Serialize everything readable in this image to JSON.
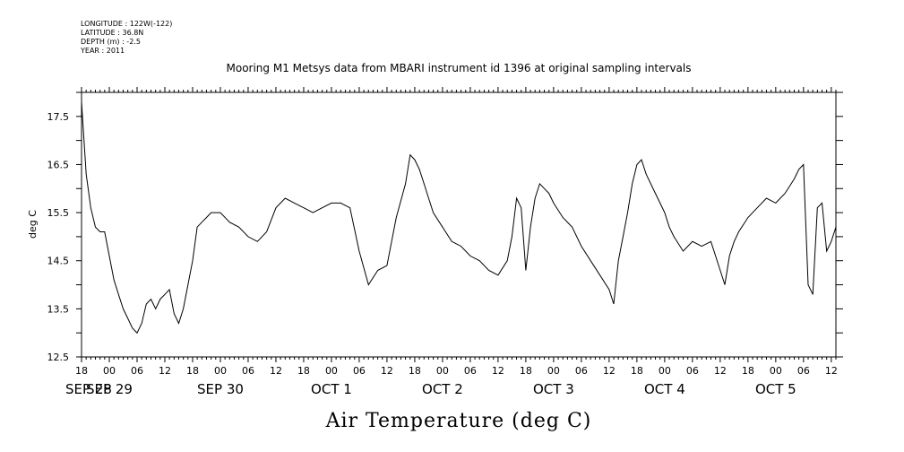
{
  "header": {
    "lines": [
      "LONGITUDE : 122W(-122)",
      "LATITUDE : 36.8N",
      "DEPTH (m) : -2.5",
      "YEAR : 2011"
    ]
  },
  "chart_data": {
    "type": "line",
    "title": "Mooring M1 Metsys data from MBARI instrument id 1396 at original sampling intervals",
    "xlabel": "Air Temperature (deg C)",
    "ylabel": "deg C",
    "ylim": [
      12.5,
      18.0
    ],
    "yticks": [
      12.5,
      13.5,
      14.5,
      15.5,
      16.5,
      17.5
    ],
    "ytick_labels": [
      "12.5",
      "13.5",
      "14.5",
      "15.5",
      "16.5",
      "17.5"
    ],
    "xlim": [
      "2011-09-28 18:00",
      "2011-10-05 13:00"
    ],
    "x_hour_labels": [
      "18",
      "00",
      "06",
      "12",
      "18",
      "00",
      "06",
      "12",
      "18",
      "00",
      "06",
      "12",
      "18",
      "00",
      "06",
      "12",
      "18",
      "00",
      "06",
      "12",
      "18",
      "00",
      "06",
      "12",
      "18",
      "00",
      "06",
      "12"
    ],
    "x_date_labels": [
      "SEP 28",
      "SEP 29",
      "SEP 30",
      "OCT 1",
      "OCT 2",
      "OCT 3",
      "OCT 4",
      "OCT 5"
    ],
    "grid": false,
    "series": [
      {
        "color": "#000000",
        "x": [
          "2011-09-28 18:00",
          "2011-09-28 19:00",
          "2011-09-28 20:00",
          "2011-09-28 21:00",
          "2011-09-28 22:00",
          "2011-09-28 23:00",
          "2011-09-29 00:00",
          "2011-09-29 01:00",
          "2011-09-29 02:00",
          "2011-09-29 03:00",
          "2011-09-29 04:00",
          "2011-09-29 05:00",
          "2011-09-29 06:00",
          "2011-09-29 07:00",
          "2011-09-29 08:00",
          "2011-09-29 09:00",
          "2011-09-29 10:00",
          "2011-09-29 11:00",
          "2011-09-29 12:00",
          "2011-09-29 13:00",
          "2011-09-29 14:00",
          "2011-09-29 15:00",
          "2011-09-29 16:00",
          "2011-09-29 17:00",
          "2011-09-29 18:00",
          "2011-09-29 19:00",
          "2011-09-29 20:00",
          "2011-09-29 21:00",
          "2011-09-29 22:00",
          "2011-09-29 23:00",
          "2011-09-30 00:00",
          "2011-09-30 02:00",
          "2011-09-30 04:00",
          "2011-09-30 06:00",
          "2011-09-30 08:00",
          "2011-09-30 10:00",
          "2011-09-30 12:00",
          "2011-09-30 14:00",
          "2011-09-30 16:00",
          "2011-09-30 18:00",
          "2011-09-30 20:00",
          "2011-09-30 22:00",
          "2011-10-01 00:00",
          "2011-10-01 02:00",
          "2011-10-01 04:00",
          "2011-10-01 06:00",
          "2011-10-01 08:00",
          "2011-10-01 10:00",
          "2011-10-01 12:00",
          "2011-10-01 13:00",
          "2011-10-01 14:00",
          "2011-10-01 16:00",
          "2011-10-01 17:00",
          "2011-10-01 18:00",
          "2011-10-01 19:00",
          "2011-10-01 20:00",
          "2011-10-01 21:00",
          "2011-10-01 22:00",
          "2011-10-02 00:00",
          "2011-10-02 02:00",
          "2011-10-02 04:00",
          "2011-10-02 06:00",
          "2011-10-02 08:00",
          "2011-10-02 10:00",
          "2011-10-02 12:00",
          "2011-10-02 14:00",
          "2011-10-02 15:00",
          "2011-10-02 16:00",
          "2011-10-02 17:00",
          "2011-10-02 18:00",
          "2011-10-02 19:00",
          "2011-10-02 20:00",
          "2011-10-02 21:00",
          "2011-10-02 22:00",
          "2011-10-02 23:00",
          "2011-10-03 00:00",
          "2011-10-03 02:00",
          "2011-10-03 04:00",
          "2011-10-03 06:00",
          "2011-10-03 08:00",
          "2011-10-03 10:00",
          "2011-10-03 12:00",
          "2011-10-03 13:00",
          "2011-10-03 14:00",
          "2011-10-03 15:00",
          "2011-10-03 16:00",
          "2011-10-03 17:00",
          "2011-10-03 18:00",
          "2011-10-03 19:00",
          "2011-10-03 20:00",
          "2011-10-03 22:00",
          "2011-10-04 00:00",
          "2011-10-04 01:00",
          "2011-10-04 02:00",
          "2011-10-04 04:00",
          "2011-10-04 06:00",
          "2011-10-04 08:00",
          "2011-10-04 10:00",
          "2011-10-04 12:00",
          "2011-10-04 13:00",
          "2011-10-04 14:00",
          "2011-10-04 15:00",
          "2011-10-04 16:00",
          "2011-10-04 18:00",
          "2011-10-04 20:00",
          "2011-10-04 22:00",
          "2011-10-05 00:00",
          "2011-10-05 02:00",
          "2011-10-05 04:00",
          "2011-10-05 05:00",
          "2011-10-05 06:00",
          "2011-10-05 07:00",
          "2011-10-05 08:00",
          "2011-10-05 09:00",
          "2011-10-05 10:00",
          "2011-10-05 11:00",
          "2011-10-05 12:00",
          "2011-10-05 13:00"
        ],
        "y": [
          17.8,
          16.3,
          15.6,
          15.2,
          15.1,
          15.1,
          14.6,
          14.1,
          13.8,
          13.5,
          13.3,
          13.1,
          13.0,
          13.2,
          13.6,
          13.7,
          13.5,
          13.7,
          13.8,
          13.9,
          13.4,
          13.2,
          13.5,
          14.0,
          14.5,
          15.2,
          15.3,
          15.4,
          15.5,
          15.5,
          15.5,
          15.3,
          15.2,
          15.0,
          14.9,
          15.1,
          15.6,
          15.8,
          15.7,
          15.6,
          15.5,
          15.6,
          15.7,
          15.7,
          15.6,
          14.7,
          14.0,
          14.3,
          14.4,
          14.9,
          15.4,
          16.1,
          16.7,
          16.6,
          16.4,
          16.1,
          15.8,
          15.5,
          15.2,
          14.9,
          14.8,
          14.6,
          14.5,
          14.3,
          14.2,
          14.5,
          15.0,
          15.8,
          15.6,
          14.3,
          15.2,
          15.8,
          16.1,
          16.0,
          15.9,
          15.7,
          15.4,
          15.2,
          14.8,
          14.5,
          14.2,
          13.9,
          13.6,
          14.5,
          15.0,
          15.5,
          16.1,
          16.5,
          16.6,
          16.3,
          15.9,
          15.5,
          15.2,
          15.0,
          14.7,
          14.9,
          14.8,
          14.9,
          14.3,
          14.0,
          14.6,
          14.9,
          15.1,
          15.4,
          15.6,
          15.8,
          15.7,
          15.9,
          16.2,
          16.4,
          16.5,
          14.0,
          13.8,
          15.6,
          15.7,
          14.7,
          14.9,
          15.2
        ]
      }
    ]
  }
}
